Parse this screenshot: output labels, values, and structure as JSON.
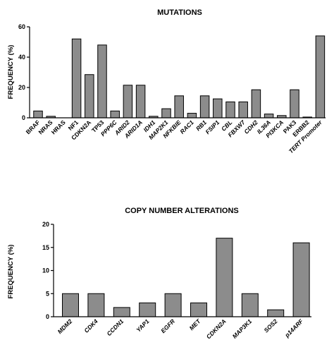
{
  "chart_data": [
    {
      "type": "bar",
      "title": "MUTATIONS",
      "xlabel": "",
      "ylabel": "FREQUENCY (%)",
      "ylim": [
        0,
        60
      ],
      "yticks": [
        "0",
        "20",
        "40",
        "60"
      ],
      "grid": false,
      "categories": [
        "BRAF",
        "NRAS",
        "HRAS",
        "NF1",
        "CDKN2A",
        "TP53",
        "PPP6C",
        "ARID2",
        "ARID1A",
        "IDH1",
        "MAP2K1",
        "NFKBIE",
        "RAC1",
        "RB1",
        "FSIP1",
        "CBL",
        "FBXW7",
        "CDH2",
        "IL36A",
        "PI3KCA",
        "PAK3",
        "ERBB2",
        "TERT Promoter"
      ],
      "italic": [
        false,
        false,
        false,
        false,
        false,
        false,
        true,
        true,
        true,
        true,
        true,
        true,
        true,
        true,
        true,
        true,
        true,
        true,
        true,
        true,
        false,
        false,
        true
      ],
      "values": [
        4.5,
        1,
        0,
        52,
        28.5,
        48,
        4.5,
        21.5,
        21.5,
        1,
        6,
        14.5,
        3,
        14.5,
        12.5,
        10.5,
        10.5,
        18.5,
        2.5,
        1.5,
        18.5,
        0.5,
        54
      ]
    },
    {
      "type": "bar",
      "title": "COPY NUMBER ALTERATIONS",
      "xlabel": "",
      "ylabel": "FREQUENCY (%)",
      "ylim": [
        0,
        20
      ],
      "yticks": [
        "0",
        "5",
        "10",
        "15",
        "20"
      ],
      "grid": false,
      "categories": [
        "MDM2",
        "CDK4",
        "CCDN1",
        "YAP1",
        "EGFR",
        "MET",
        "CDKN2A",
        "MAP3K1",
        "SOS2",
        "p14ARF"
      ],
      "italic": [
        true,
        true,
        true,
        true,
        true,
        true,
        true,
        true,
        true,
        true
      ],
      "values": [
        5,
        5,
        2,
        3,
        5,
        3,
        17,
        5,
        1.5,
        16
      ]
    }
  ],
  "colors": {
    "bar_fill": "#8c8c8c",
    "bar_stroke": "#000000"
  }
}
